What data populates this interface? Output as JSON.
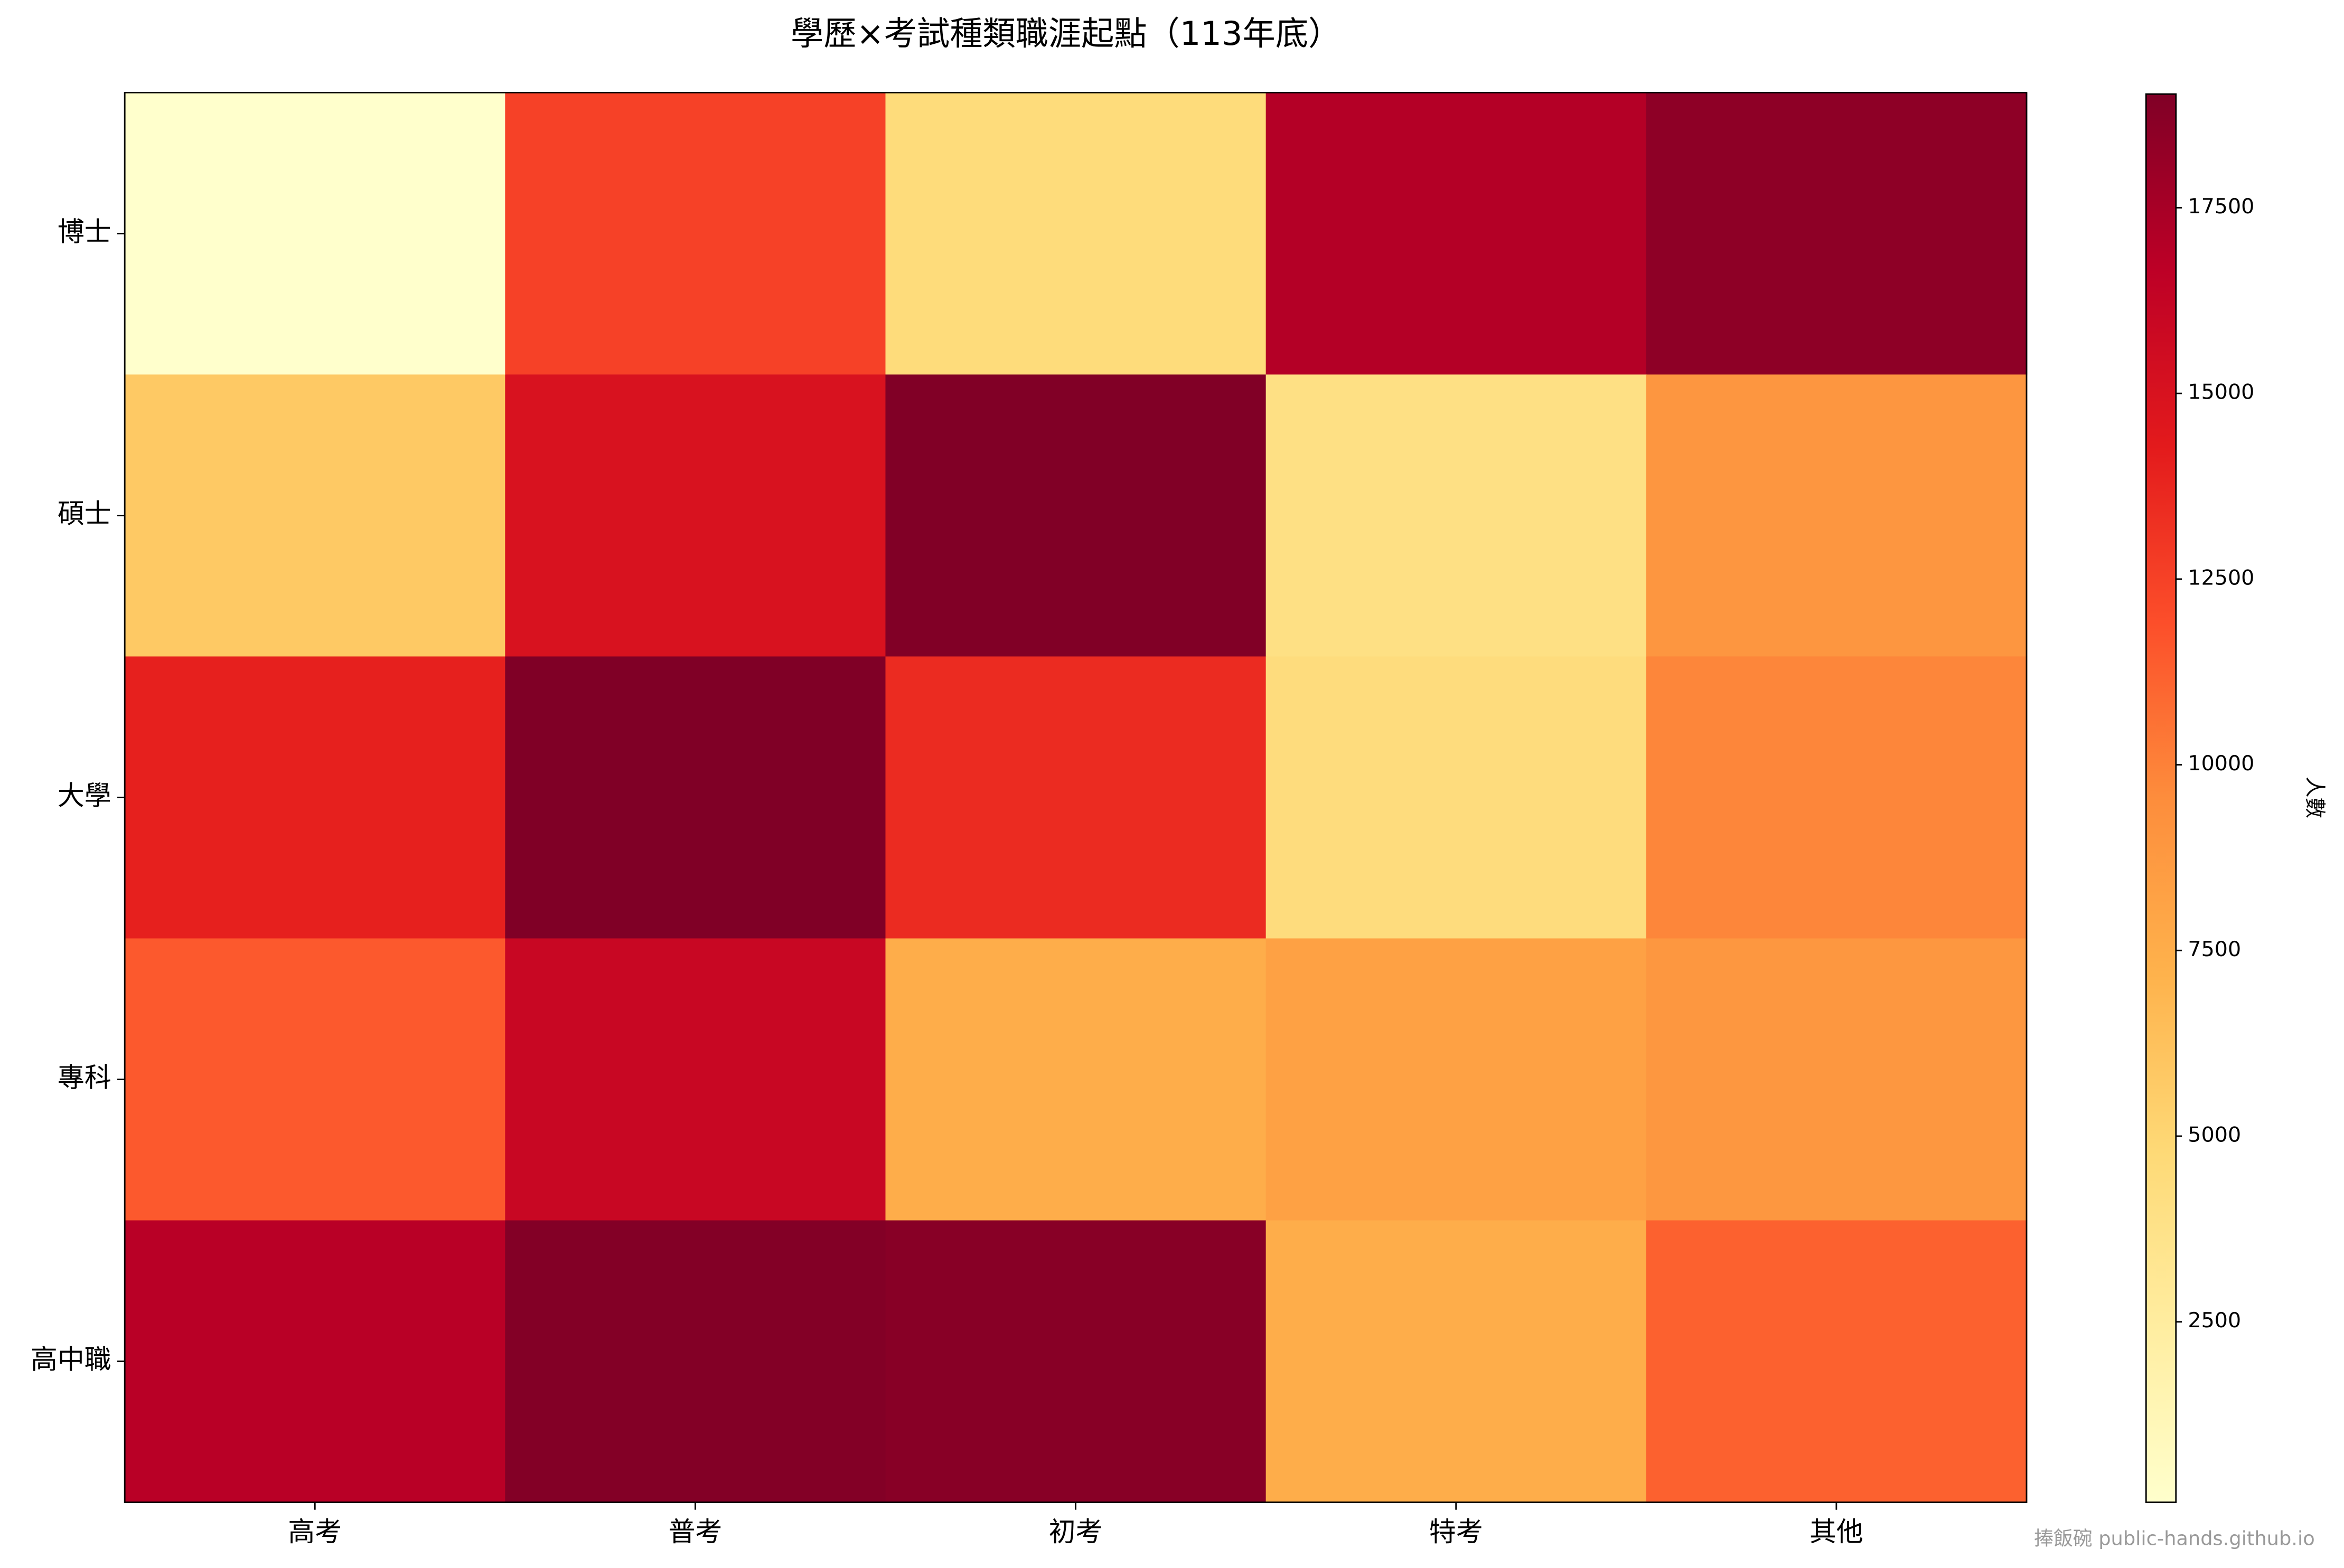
{
  "chart_data": {
    "type": "heatmap",
    "title": "學歷×考試種類職涯起點（113年底）",
    "x_categories": [
      "高考",
      "普考",
      "初考",
      "特考",
      "其他"
    ],
    "y_categories": [
      "博士",
      "碩士",
      "大學",
      "專科",
      "高中職"
    ],
    "values": [
      [
        70,
        12500,
        4500,
        17000,
        18500
      ],
      [
        5800,
        15000,
        19000,
        4000,
        9000
      ],
      [
        14000,
        19030,
        13500,
        4400,
        9800
      ],
      [
        11500,
        16000,
        7500,
        8300,
        8900
      ],
      [
        16800,
        18900,
        18700,
        7500,
        11200
      ]
    ],
    "colormap": "YlOrRd",
    "clim": [
      70,
      19030
    ],
    "colorbar_ticks": [
      2500,
      5000,
      7500,
      10000,
      12500,
      15000,
      17500
    ],
    "colorbar_label": "人數",
    "watermark": "捧飯碗 public-hands.github.io"
  }
}
